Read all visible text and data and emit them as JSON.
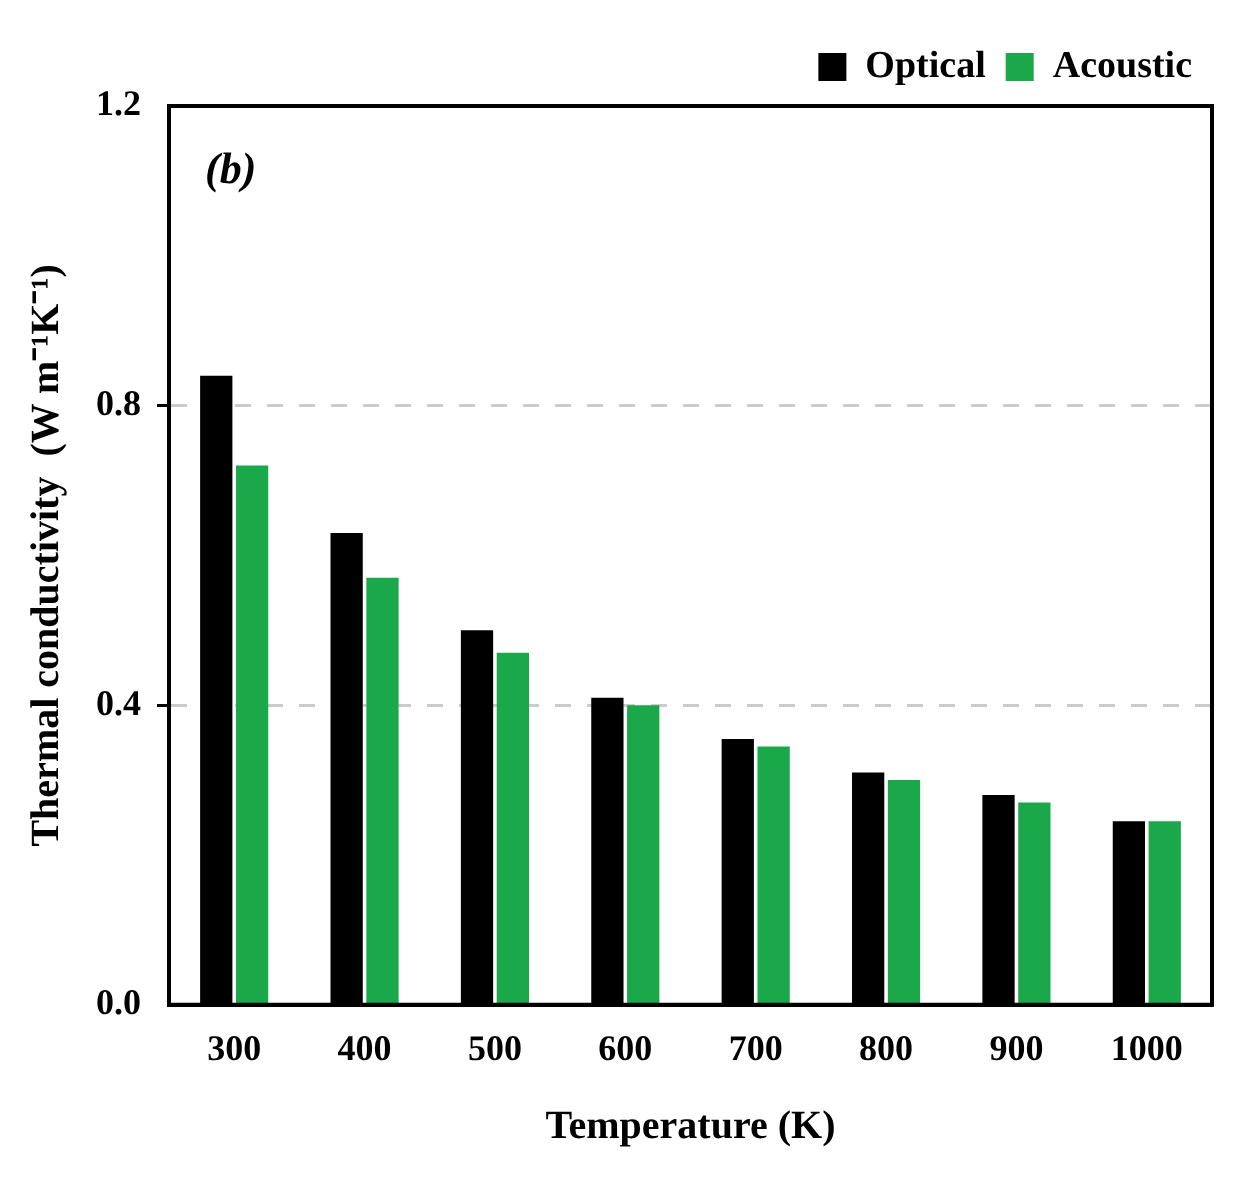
{
  "chart_data": {
    "type": "bar",
    "xlabel": "Temperature (K)",
    "ylabel": "Thermal conductivity  (W m⁻¹K⁻¹)",
    "annotations": [
      "(b)"
    ],
    "categories": [
      "300",
      "400",
      "500",
      "600",
      "700",
      "800",
      "900",
      "1000"
    ],
    "series": [
      {
        "name": "Optical",
        "color": "#000000",
        "values": [
          0.84,
          0.63,
          0.5,
          0.41,
          0.355,
          0.31,
          0.28,
          0.245
        ]
      },
      {
        "name": "Acoustic",
        "color": "#1aa84a",
        "values": [
          0.72,
          0.57,
          0.47,
          0.4,
          0.345,
          0.3,
          0.27,
          0.245
        ]
      }
    ],
    "ylim": [
      0,
      1.2
    ],
    "yticks": [
      {
        "value": 0,
        "label": "0.0"
      },
      0.4,
      0.8,
      1.2
    ],
    "grid": "y",
    "legend": "top right"
  }
}
